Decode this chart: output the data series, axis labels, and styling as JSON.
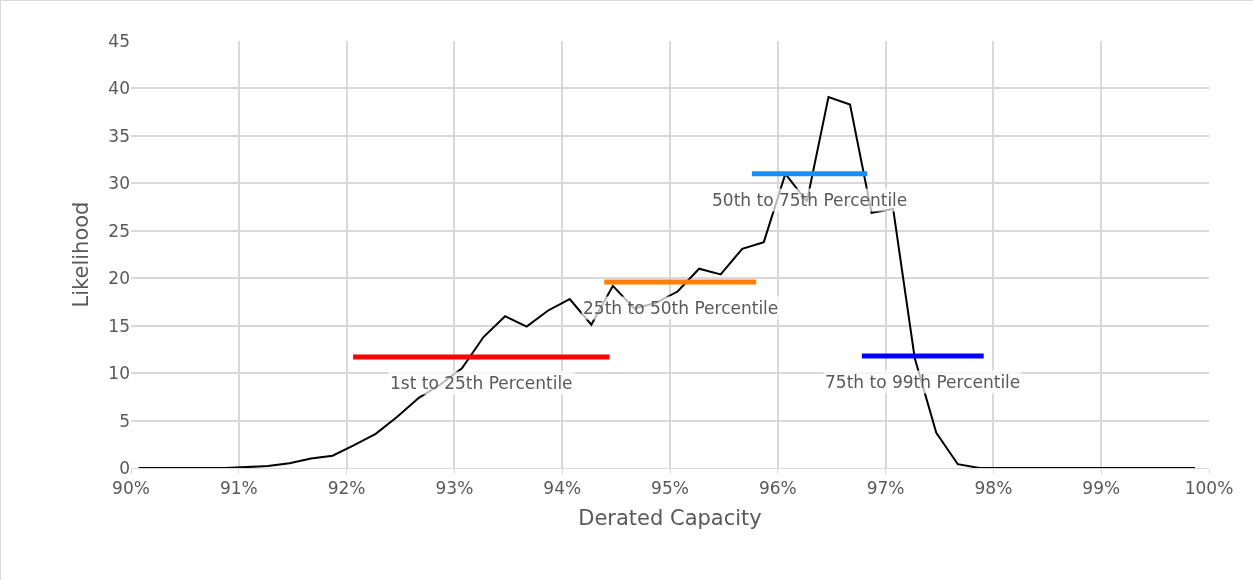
{
  "chart_data": {
    "type": "line",
    "xlabel": "Derated Capacity",
    "ylabel": "Likelihood",
    "xlim": [
      90,
      100
    ],
    "xticks": [
      {
        "value": 90,
        "label": "90%"
      },
      {
        "value": 91,
        "label": "91%"
      },
      {
        "value": 92,
        "label": "92%"
      },
      {
        "value": 93,
        "label": "93%"
      },
      {
        "value": 94,
        "label": "94%"
      },
      {
        "value": 95,
        "label": "95%"
      },
      {
        "value": 96,
        "label": "96%"
      },
      {
        "value": 97,
        "label": "97%"
      },
      {
        "value": 98,
        "label": "98%"
      },
      {
        "value": 99,
        "label": "99%"
      },
      {
        "value": 100,
        "label": "100%"
      }
    ],
    "ylim": [
      0,
      45
    ],
    "yticks": [
      0,
      5,
      10,
      15,
      20,
      25,
      30,
      35,
      40,
      45
    ],
    "grid": true,
    "legend": false,
    "marker": "none",
    "line_style": "solid",
    "series": [
      {
        "color": "#000000",
        "x": [
          90.07,
          90.27,
          90.47,
          90.67,
          90.87,
          91.07,
          91.27,
          91.47,
          91.67,
          91.87,
          92.07,
          92.27,
          92.47,
          92.67,
          92.87,
          93.07,
          93.27,
          93.47,
          93.67,
          93.87,
          94.07,
          94.27,
          94.47,
          94.67,
          94.87,
          95.07,
          95.27,
          95.47,
          95.67,
          95.87,
          96.07,
          96.27,
          96.47,
          96.67,
          96.87,
          97.07,
          97.27,
          97.47,
          97.67,
          97.87,
          98.07,
          98.27,
          98.47,
          98.67,
          98.87,
          99.07,
          99.27,
          99.47,
          99.67,
          99.87
        ],
        "values": [
          0,
          0,
          0,
          0,
          0,
          0.1,
          0.2,
          0.5,
          1.0,
          1.3,
          2.4,
          3.6,
          5.4,
          7.4,
          8.8,
          10.5,
          13.8,
          16.0,
          14.9,
          16.6,
          17.8,
          15.1,
          19.2,
          16.8,
          17.4,
          18.6,
          21.0,
          20.4,
          23.1,
          23.8,
          31.0,
          28.1,
          39.1,
          38.3,
          26.9,
          27.3,
          11.6,
          3.7,
          0.4,
          0,
          0,
          0,
          0,
          0,
          0,
          0,
          0,
          0,
          0,
          0
        ]
      },
      {
        "name": "1st to 25th Percentile",
        "color": "#ff0000",
        "x": [
          92.06,
          94.44
        ],
        "values": [
          11.7,
          11.7
        ]
      },
      {
        "name": "25th to 50th Percentile",
        "color": "#ff8000",
        "x": [
          94.39,
          95.8
        ],
        "values": [
          19.6,
          19.6
        ]
      },
      {
        "name": "50th to 75th Percentile",
        "color": "#1a8cff",
        "x": [
          95.76,
          96.83
        ],
        "values": [
          31.0,
          31.0
        ]
      },
      {
        "name": "75th to 99th Percentile",
        "color": "#0000ff",
        "x": [
          96.78,
          97.91
        ],
        "values": [
          11.8,
          11.8
        ]
      }
    ]
  }
}
